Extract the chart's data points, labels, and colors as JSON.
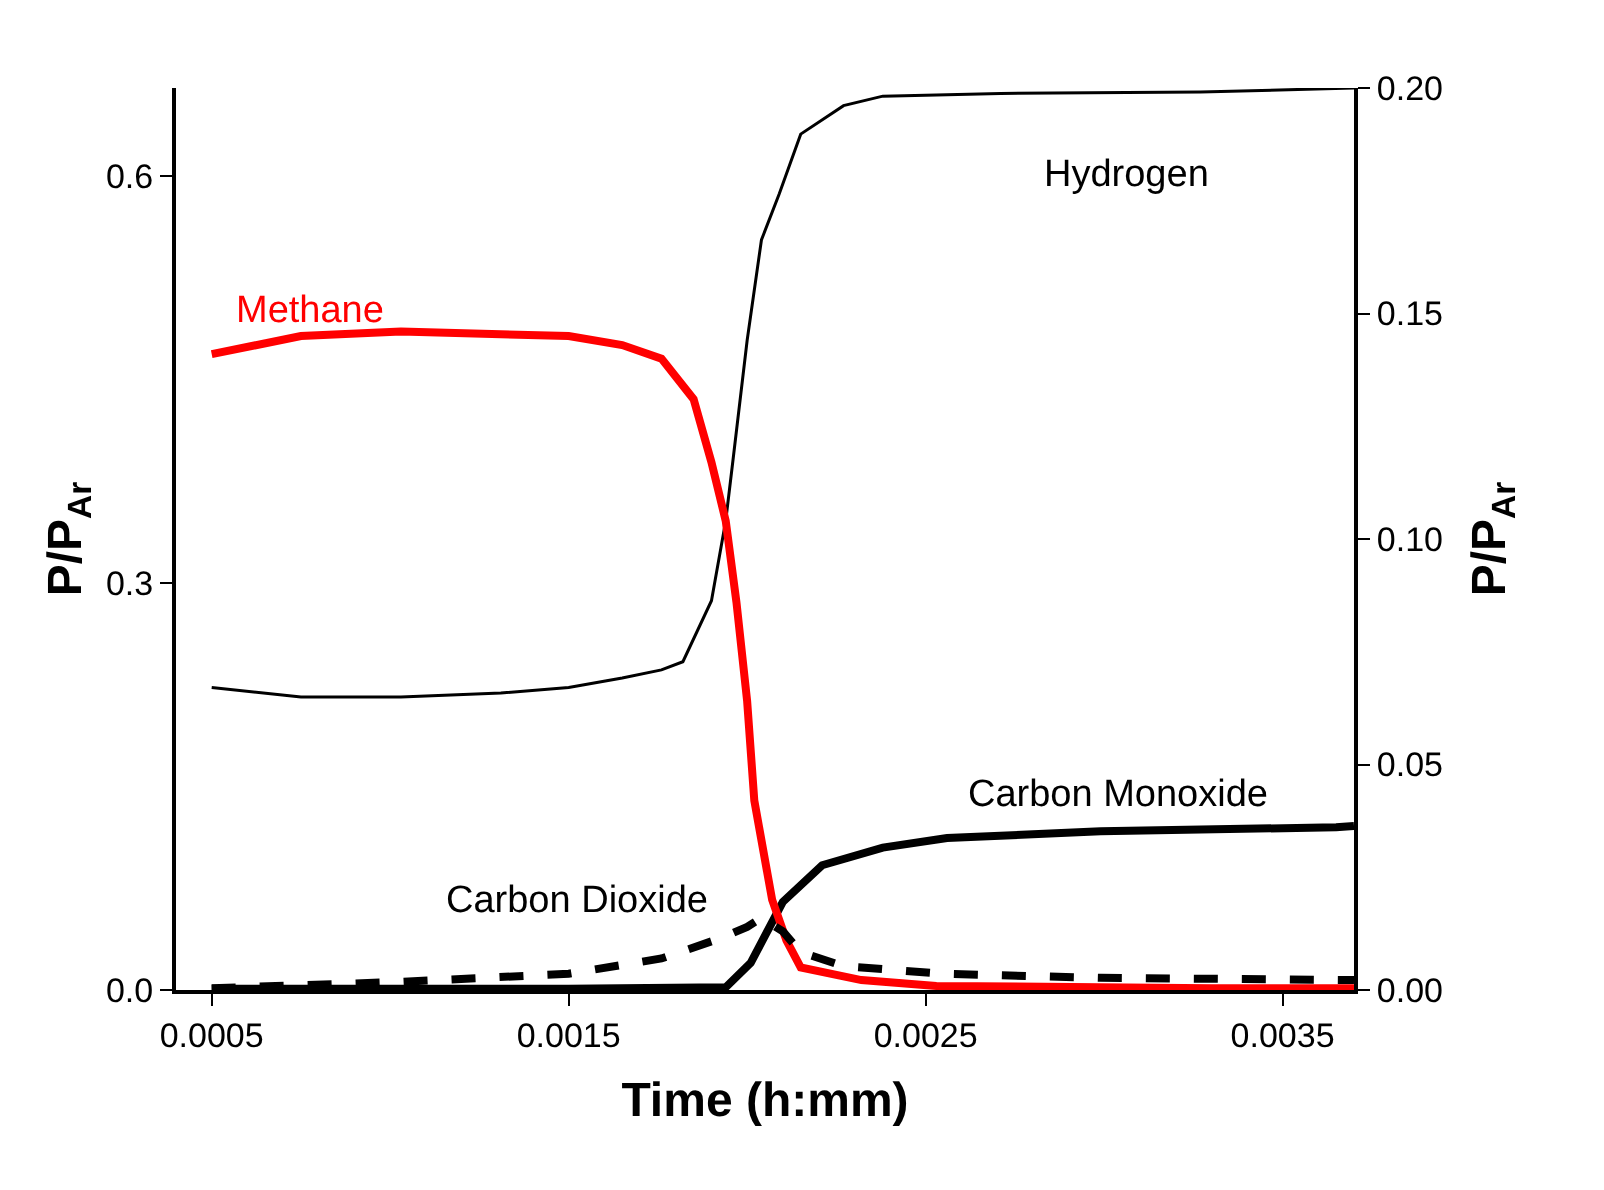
{
  "chart_data": {
    "type": "line",
    "xlabel": "Time (h:mm)",
    "ylabel": "P/P$_{Ar}$",
    "y2label": "P/P$_{Ar}$",
    "xlim": [
      0.0004,
      0.0037
    ],
    "xticks": [
      0.0005,
      0.0015,
      0.0025,
      0.0035
    ],
    "ylim": [
      0,
      0.665
    ],
    "yticks": [
      {
        "value": 0,
        "label": "0.0"
      },
      0.3,
      0.6
    ],
    "y2lim": [
      0,
      0.2
    ],
    "y2ticks": [
      {
        "value": 0,
        "label": "0.00"
      },
      0.05,
      {
        "value": 0.1,
        "label": "0.10"
      },
      0.15,
      {
        "value": 0.2,
        "label": "0.20"
      }
    ],
    "legend": false,
    "marker": "none",
    "series": [
      {
        "name": "Hydrogen",
        "color": "#000000",
        "axis": "y",
        "line_style": "solid",
        "x": [
          0.0005,
          0.00075,
          0.00103,
          0.00131,
          0.0015,
          0.00165,
          0.00176,
          0.00182,
          0.0019,
          0.00194,
          0.00196,
          0.002,
          0.00204,
          0.00209,
          0.00215,
          0.00227,
          0.00238,
          0.00271,
          0.00327,
          0.0037
        ],
        "values": [
          0.223,
          0.216,
          0.216,
          0.219,
          0.223,
          0.23,
          0.236,
          0.242,
          0.287,
          0.346,
          0.39,
          0.479,
          0.553,
          0.587,
          0.631,
          0.652,
          0.659,
          0.661,
          0.662,
          0.665
        ]
      },
      {
        "name": "Methane",
        "color": "#ff0000",
        "axis": "y2",
        "line_style": "solid",
        "x": [
          0.0005,
          0.00075,
          0.00103,
          0.0015,
          0.00165,
          0.00176,
          0.00185,
          0.0019,
          0.00194,
          0.00197,
          0.002,
          0.00202,
          0.00207,
          0.00211,
          0.00215,
          0.00232,
          0.00253,
          0.0033,
          0.0037
        ],
        "values": [
          0.141,
          0.145,
          0.146,
          0.145,
          0.143,
          0.14,
          0.131,
          0.117,
          0.104,
          0.086,
          0.064,
          0.042,
          0.02,
          0.011,
          0.005,
          0.0022,
          0.0009,
          0.0004,
          0.0004
        ]
      },
      {
        "name": "Carbon Monoxide",
        "color": "#000000",
        "axis": "y",
        "line_style": "solid",
        "x": [
          0.0005,
          0.001,
          0.0015,
          0.00194,
          0.00201,
          0.0021,
          0.00221,
          0.00238,
          0.00256,
          0.00299,
          0.00365,
          0.0037
        ],
        "values": [
          0.001,
          0.001,
          0.001,
          0.002,
          0.02,
          0.065,
          0.092,
          0.105,
          0.112,
          0.117,
          0.12,
          0.121
        ]
      },
      {
        "name": "Carbon Dioxide",
        "color": "#000000",
        "axis": "y2",
        "line_style": "dashed",
        "x": [
          0.0005,
          0.00103,
          0.0015,
          0.00176,
          0.00193,
          0.002,
          0.00204,
          0.0021,
          0.00215,
          0.00227,
          0.00255,
          0.00299,
          0.0037
        ],
        "values": [
          0.0004,
          0.0018,
          0.0036,
          0.007,
          0.0116,
          0.014,
          0.016,
          0.013,
          0.0084,
          0.0053,
          0.0036,
          0.0027,
          0.0022
        ]
      }
    ]
  }
}
